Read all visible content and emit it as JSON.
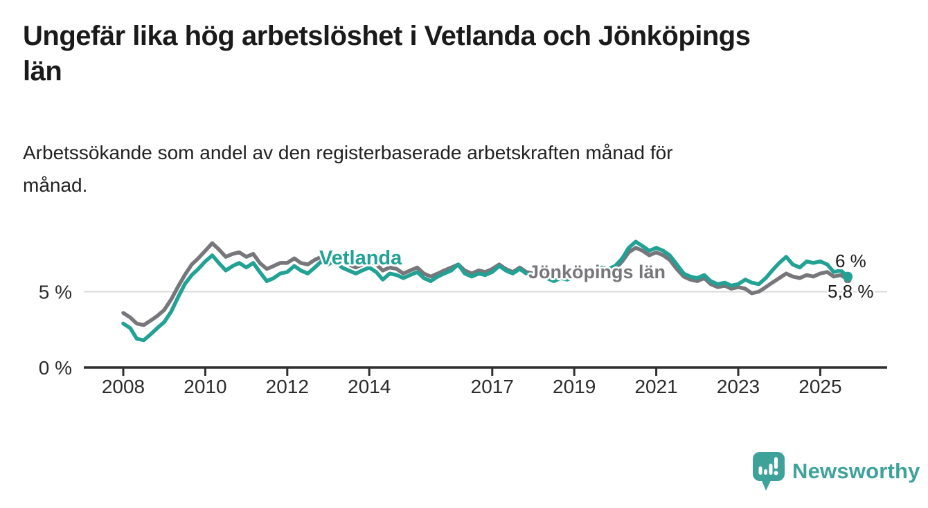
{
  "header": {
    "title_lines": [
      "Ungefär lika hög arbetslöshet i Vetlanda och Jönköpings",
      "län"
    ],
    "subtitle_lines": [
      "Arbetssökande som andel av den registerbaserade arbetskraften månad för",
      "månad."
    ]
  },
  "chart_data": {
    "type": "line",
    "title": "Ungefär lika hög arbetslöshet i Vetlanda och Jönköpings län",
    "subtitle": "Arbetssökande som andel av den registerbaserade arbetskraften månad för månad.",
    "unit": "%",
    "x_axis": {
      "tick_years": [
        2008,
        2010,
        2012,
        2014,
        2017,
        2019,
        2021,
        2023,
        2025
      ],
      "tick_labels": [
        "2008",
        "2010",
        "2012",
        "2014",
        "2017",
        "2019",
        "2021",
        "2023",
        "2025"
      ],
      "range": [
        2007.9,
        2025.9
      ]
    },
    "y_axis": {
      "ticks": [
        {
          "value": 0,
          "label": "0 %"
        },
        {
          "value": 5,
          "label": "5 %"
        }
      ],
      "range": [
        0,
        8.8
      ],
      "gridline_values": [
        5
      ]
    },
    "legend_position": "inline-labels-on-lines",
    "grid": "single horizontal gridline at 5 %",
    "series": [
      {
        "name": "Jönköpings län",
        "color": "#77777b",
        "end_label": "5,8 %",
        "end_value": 5.8,
        "points": [
          [
            2008.0,
            3.6
          ],
          [
            2008.17,
            3.3
          ],
          [
            2008.33,
            2.9
          ],
          [
            2008.5,
            2.8
          ],
          [
            2008.67,
            3.1
          ],
          [
            2008.83,
            3.4
          ],
          [
            2009.0,
            3.8
          ],
          [
            2009.17,
            4.5
          ],
          [
            2009.33,
            5.3
          ],
          [
            2009.5,
            6.1
          ],
          [
            2009.67,
            6.8
          ],
          [
            2009.83,
            7.2
          ],
          [
            2010.0,
            7.7
          ],
          [
            2010.17,
            8.2
          ],
          [
            2010.33,
            7.8
          ],
          [
            2010.5,
            7.3
          ],
          [
            2010.67,
            7.5
          ],
          [
            2010.83,
            7.6
          ],
          [
            2011.0,
            7.3
          ],
          [
            2011.17,
            7.5
          ],
          [
            2011.33,
            6.9
          ],
          [
            2011.5,
            6.5
          ],
          [
            2011.67,
            6.7
          ],
          [
            2011.83,
            6.9
          ],
          [
            2012.0,
            6.9
          ],
          [
            2012.17,
            7.2
          ],
          [
            2012.33,
            6.9
          ],
          [
            2012.5,
            6.8
          ],
          [
            2012.67,
            7.1
          ],
          [
            2012.83,
            7.3
          ],
          [
            2013.0,
            7.2
          ],
          [
            2013.17,
            7.4
          ],
          [
            2013.33,
            7.0
          ],
          [
            2013.5,
            6.8
          ],
          [
            2013.67,
            6.6
          ],
          [
            2013.83,
            6.8
          ],
          [
            2014.0,
            7.0
          ],
          [
            2014.17,
            6.8
          ],
          [
            2014.33,
            6.4
          ],
          [
            2014.5,
            6.6
          ],
          [
            2014.67,
            6.5
          ],
          [
            2014.83,
            6.2
          ],
          [
            2015.0,
            6.4
          ],
          [
            2015.17,
            6.6
          ],
          [
            2015.33,
            6.2
          ],
          [
            2015.5,
            6.0
          ],
          [
            2015.67,
            6.2
          ],
          [
            2015.83,
            6.4
          ],
          [
            2016.0,
            6.6
          ],
          [
            2016.17,
            6.8
          ],
          [
            2016.33,
            6.4
          ],
          [
            2016.5,
            6.2
          ],
          [
            2016.67,
            6.4
          ],
          [
            2016.83,
            6.3
          ],
          [
            2017.0,
            6.5
          ],
          [
            2017.17,
            6.8
          ],
          [
            2017.33,
            6.5
          ],
          [
            2017.5,
            6.3
          ],
          [
            2017.67,
            6.6
          ],
          [
            2017.83,
            6.3
          ],
          [
            2018.0,
            6.2
          ],
          [
            2018.17,
            6.4
          ],
          [
            2018.33,
            6.1
          ],
          [
            2018.5,
            5.9
          ],
          [
            2018.67,
            6.1
          ],
          [
            2018.83,
            6.0
          ],
          [
            2019.0,
            6.1
          ],
          [
            2019.17,
            6.3
          ],
          [
            2019.33,
            6.2
          ],
          [
            2019.5,
            6.4
          ],
          [
            2019.67,
            6.5
          ],
          [
            2019.83,
            6.4
          ],
          [
            2020.0,
            6.5
          ],
          [
            2020.17,
            7.0
          ],
          [
            2020.33,
            7.6
          ],
          [
            2020.5,
            7.9
          ],
          [
            2020.67,
            7.7
          ],
          [
            2020.83,
            7.4
          ],
          [
            2021.0,
            7.6
          ],
          [
            2021.17,
            7.4
          ],
          [
            2021.33,
            7.1
          ],
          [
            2021.5,
            6.5
          ],
          [
            2021.67,
            6.0
          ],
          [
            2021.83,
            5.8
          ],
          [
            2022.0,
            5.7
          ],
          [
            2022.17,
            5.9
          ],
          [
            2022.33,
            5.5
          ],
          [
            2022.5,
            5.3
          ],
          [
            2022.67,
            5.4
          ],
          [
            2022.83,
            5.2
          ],
          [
            2023.0,
            5.3
          ],
          [
            2023.17,
            5.2
          ],
          [
            2023.33,
            4.9
          ],
          [
            2023.5,
            5.0
          ],
          [
            2023.67,
            5.3
          ],
          [
            2023.83,
            5.6
          ],
          [
            2024.0,
            5.9
          ],
          [
            2024.17,
            6.2
          ],
          [
            2024.33,
            6.0
          ],
          [
            2024.5,
            5.9
          ],
          [
            2024.67,
            6.1
          ],
          [
            2024.83,
            6.0
          ],
          [
            2025.0,
            6.2
          ],
          [
            2025.17,
            6.3
          ],
          [
            2025.33,
            6.0
          ],
          [
            2025.5,
            6.1
          ],
          [
            2025.67,
            5.8
          ]
        ]
      },
      {
        "name": "Vetlanda",
        "color": "#21a294",
        "end_label": "6 %",
        "end_value": 6.0,
        "points": [
          [
            2008.0,
            2.9
          ],
          [
            2008.17,
            2.6
          ],
          [
            2008.33,
            1.9
          ],
          [
            2008.5,
            1.8
          ],
          [
            2008.67,
            2.2
          ],
          [
            2008.83,
            2.6
          ],
          [
            2009.0,
            3.0
          ],
          [
            2009.17,
            3.7
          ],
          [
            2009.33,
            4.6
          ],
          [
            2009.5,
            5.5
          ],
          [
            2009.67,
            6.1
          ],
          [
            2009.83,
            6.5
          ],
          [
            2010.0,
            7.0
          ],
          [
            2010.17,
            7.4
          ],
          [
            2010.33,
            6.9
          ],
          [
            2010.5,
            6.4
          ],
          [
            2010.67,
            6.7
          ],
          [
            2010.83,
            6.9
          ],
          [
            2011.0,
            6.6
          ],
          [
            2011.17,
            6.9
          ],
          [
            2011.33,
            6.3
          ],
          [
            2011.5,
            5.7
          ],
          [
            2011.67,
            5.9
          ],
          [
            2011.83,
            6.2
          ],
          [
            2012.0,
            6.3
          ],
          [
            2012.17,
            6.7
          ],
          [
            2012.33,
            6.4
          ],
          [
            2012.5,
            6.2
          ],
          [
            2012.67,
            6.6
          ],
          [
            2012.83,
            7.0
          ],
          [
            2013.0,
            6.8
          ],
          [
            2013.17,
            7.1
          ],
          [
            2013.33,
            6.6
          ],
          [
            2013.5,
            6.4
          ],
          [
            2013.67,
            6.2
          ],
          [
            2013.83,
            6.4
          ],
          [
            2014.0,
            6.6
          ],
          [
            2014.17,
            6.3
          ],
          [
            2014.33,
            5.8
          ],
          [
            2014.5,
            6.2
          ],
          [
            2014.67,
            6.1
          ],
          [
            2014.83,
            5.9
          ],
          [
            2015.0,
            6.1
          ],
          [
            2015.17,
            6.3
          ],
          [
            2015.33,
            5.9
          ],
          [
            2015.5,
            5.7
          ],
          [
            2015.67,
            6.0
          ],
          [
            2015.83,
            6.2
          ],
          [
            2016.0,
            6.4
          ],
          [
            2016.17,
            6.8
          ],
          [
            2016.33,
            6.2
          ],
          [
            2016.5,
            6.0
          ],
          [
            2016.67,
            6.2
          ],
          [
            2016.83,
            6.1
          ],
          [
            2017.0,
            6.3
          ],
          [
            2017.17,
            6.7
          ],
          [
            2017.33,
            6.4
          ],
          [
            2017.5,
            6.2
          ],
          [
            2017.67,
            6.5
          ],
          [
            2017.83,
            6.2
          ],
          [
            2018.0,
            6.1
          ],
          [
            2018.17,
            6.3
          ],
          [
            2018.33,
            5.9
          ],
          [
            2018.5,
            5.7
          ],
          [
            2018.67,
            5.9
          ],
          [
            2018.83,
            5.8
          ],
          [
            2019.0,
            6.0
          ],
          [
            2019.17,
            6.3
          ],
          [
            2019.33,
            6.1
          ],
          [
            2019.5,
            6.4
          ],
          [
            2019.67,
            6.6
          ],
          [
            2019.83,
            6.5
          ],
          [
            2020.0,
            6.7
          ],
          [
            2020.17,
            7.2
          ],
          [
            2020.33,
            7.9
          ],
          [
            2020.5,
            8.3
          ],
          [
            2020.67,
            8.0
          ],
          [
            2020.83,
            7.7
          ],
          [
            2021.0,
            7.9
          ],
          [
            2021.17,
            7.7
          ],
          [
            2021.33,
            7.4
          ],
          [
            2021.5,
            6.8
          ],
          [
            2021.67,
            6.2
          ],
          [
            2021.83,
            6.0
          ],
          [
            2022.0,
            5.9
          ],
          [
            2022.17,
            6.1
          ],
          [
            2022.33,
            5.7
          ],
          [
            2022.5,
            5.5
          ],
          [
            2022.67,
            5.6
          ],
          [
            2022.83,
            5.4
          ],
          [
            2023.0,
            5.5
          ],
          [
            2023.17,
            5.8
          ],
          [
            2023.33,
            5.6
          ],
          [
            2023.5,
            5.5
          ],
          [
            2023.67,
            5.9
          ],
          [
            2023.83,
            6.4
          ],
          [
            2024.0,
            6.9
          ],
          [
            2024.17,
            7.3
          ],
          [
            2024.33,
            6.8
          ],
          [
            2024.5,
            6.6
          ],
          [
            2024.67,
            7.0
          ],
          [
            2024.83,
            6.9
          ],
          [
            2025.0,
            7.0
          ],
          [
            2025.17,
            6.8
          ],
          [
            2025.33,
            6.3
          ],
          [
            2025.5,
            6.4
          ],
          [
            2025.67,
            6.0
          ]
        ]
      }
    ]
  },
  "footer": {
    "brand": "Newsworthy",
    "logo_color": "#3ea29b",
    "logo_icon": "bar-chart-speech-bubble"
  }
}
